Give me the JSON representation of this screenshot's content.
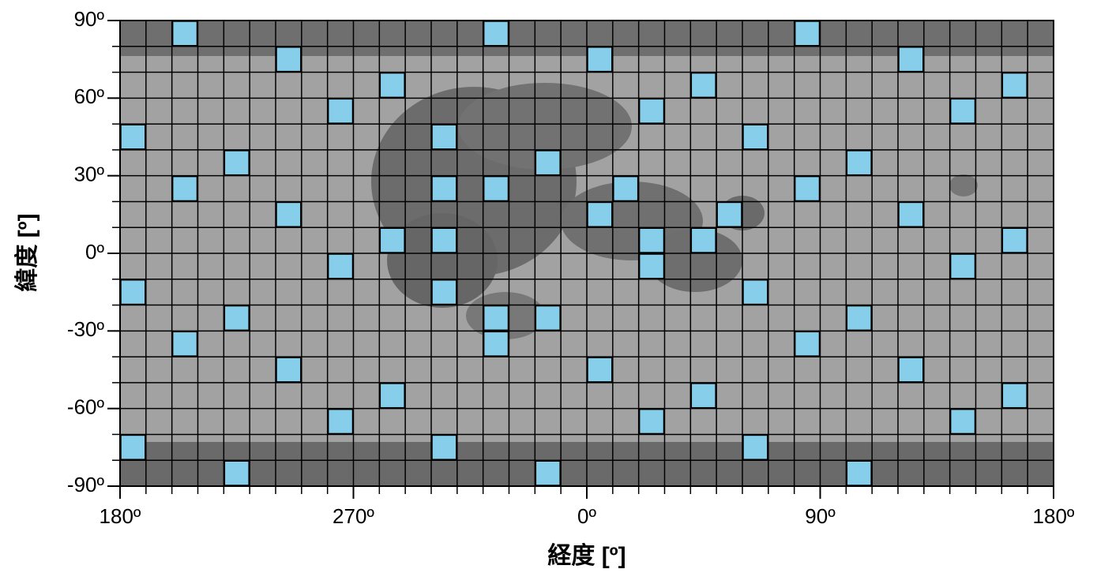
{
  "chart_data": {
    "type": "scatter",
    "xlabel": "経度 [º]",
    "ylabel": "緯度 [º]",
    "xlim": [
      -180,
      180
    ],
    "ylim": [
      -90,
      90
    ],
    "xticks": [
      {
        "value": -180,
        "label": "180º"
      },
      {
        "value": -90,
        "label": "270º"
      },
      {
        "value": 0,
        "label": "0º"
      },
      {
        "value": 90,
        "label": "90º"
      },
      {
        "value": 180,
        "label": "180º"
      }
    ],
    "yticks": [
      {
        "value": 90,
        "label": "90º"
      },
      {
        "value": 60,
        "label": "60º"
      },
      {
        "value": 30,
        "label": "30º"
      },
      {
        "value": 0,
        "label": "0º"
      },
      {
        "value": -30,
        "label": "-30º"
      },
      {
        "value": -60,
        "label": "-60º"
      },
      {
        "value": -90,
        "label": "-90º"
      }
    ],
    "xminorticks": [
      -180,
      -170,
      -160,
      -150,
      -140,
      -130,
      -120,
      -110,
      -100,
      -90,
      -80,
      -70,
      -60,
      -50,
      -40,
      -30,
      -20,
      -10,
      0,
      10,
      20,
      30,
      40,
      50,
      60,
      70,
      80,
      90,
      100,
      110,
      120,
      130,
      140,
      150,
      160,
      170,
      180
    ],
    "yminorticks": [
      -90,
      -80,
      -70,
      -60,
      -50,
      -40,
      -30,
      -20,
      -10,
      0,
      10,
      20,
      30,
      40,
      50,
      60,
      70,
      80,
      90
    ],
    "grid": true,
    "series": [
      {
        "color": "#87ceeb",
        "x": [
          -155,
          -35,
          85,
          -115,
          5,
          125,
          -75,
          45,
          165,
          -95,
          25,
          145,
          -175,
          -55,
          65,
          -135,
          -15,
          105,
          -155,
          -55,
          -35,
          15,
          85,
          -115,
          5,
          55,
          125,
          -75,
          -55,
          25,
          45,
          165,
          -95,
          25,
          145,
          -175,
          -55,
          65,
          -135,
          -35,
          -15,
          105,
          -155,
          -35,
          85,
          -115,
          5,
          125,
          -75,
          45,
          165,
          -95,
          25,
          145,
          -175,
          -55,
          65,
          -135,
          -15,
          105
        ],
        "values": [
          85,
          85,
          85,
          75,
          75,
          75,
          65,
          65,
          65,
          55,
          55,
          55,
          45,
          45,
          45,
          35,
          35,
          35,
          25,
          25,
          25,
          25,
          25,
          15,
          15,
          15,
          15,
          5,
          5,
          5,
          5,
          5,
          -5,
          -5,
          -5,
          -15,
          -15,
          -15,
          -25,
          -25,
          -25,
          -25,
          -35,
          -35,
          -35,
          -45,
          -45,
          -45,
          -55,
          -55,
          -55,
          -65,
          -65,
          -65,
          -75,
          -75,
          -75,
          -85,
          -85,
          -85
        ]
      }
    ]
  }
}
